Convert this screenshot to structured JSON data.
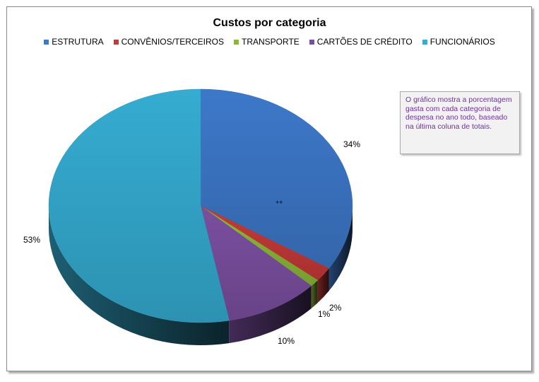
{
  "chart_data": {
    "type": "pie",
    "title": "Custos por categoria",
    "categories": [
      "ESTRUTURA",
      "CONVÊNIOS/TERCEIROS",
      "TRANSPORTE",
      "CARTÕES DE CRÉDITO",
      "FUNCIONÁRIOS"
    ],
    "values": [
      34,
      2,
      1,
      10,
      53
    ],
    "data_labels": [
      "34%",
      "2%",
      "1%",
      "10%",
      "53%"
    ],
    "colors": [
      "#3d78c9",
      "#c43a37",
      "#8cb838",
      "#7a4f9f",
      "#35acd1"
    ],
    "legend_position": "top",
    "style": "3d-pie"
  },
  "annotation": {
    "text": "O gráfico mostra a porcentagem gasta com cada categoria de despesa no ano todo, baseado na última coluna de totais."
  },
  "marker_text": "++"
}
